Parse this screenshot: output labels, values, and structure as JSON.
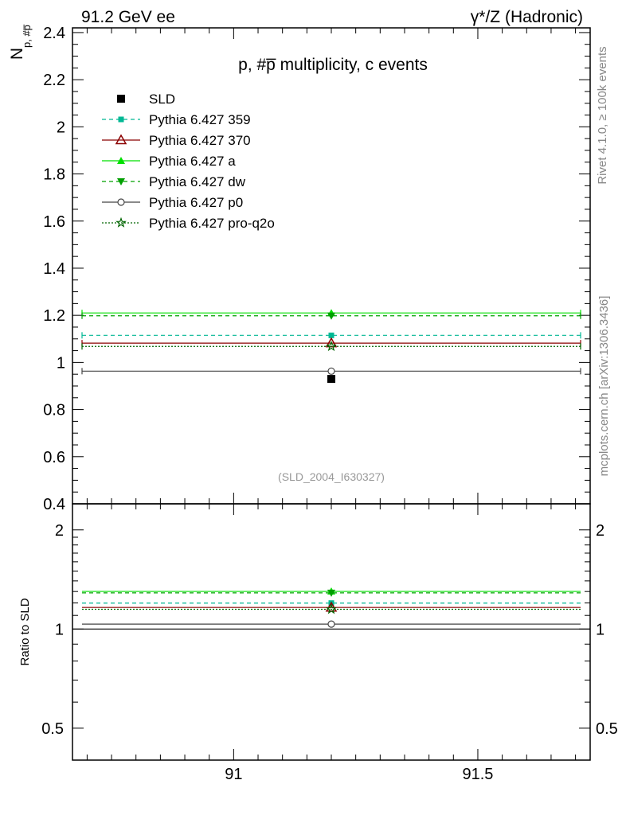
{
  "header": {
    "left": "91.2 GeV ee",
    "right": "γ*/Z (Hadronic)"
  },
  "side_labels": {
    "rivet": "Rivet 4.1.0, ≥ 100k events",
    "mcplots": "mcplots.cern.ch [arXiv:1306.3436]"
  },
  "chart_data": [
    {
      "type": "scatter",
      "title": "p, #p̅ multiplicity, c events",
      "ylabel": "N",
      "ylabel_sub": "p, #p̅",
      "watermark": "(SLD_2004_I630327)",
      "xlim": [
        90.67,
        91.73
      ],
      "ylim": [
        0.4,
        2.42
      ],
      "yticks": [
        0.4,
        0.6,
        0.8,
        1,
        1.2,
        1.4,
        1.6,
        1.8,
        2,
        2.2,
        2.4
      ],
      "ytick_labels": [
        "0.4",
        "0.6",
        "0.8",
        "1",
        "1.2",
        "1.4",
        "1.6",
        "1.8",
        "2",
        "2.2",
        "2.4"
      ],
      "legend_position": "top-left",
      "series": [
        {
          "name": "SLD",
          "x": 91.2,
          "y": 0.93,
          "color": "#000000",
          "marker": "square",
          "style": "data"
        },
        {
          "name": "Pythia 6.427 359",
          "x": 91.2,
          "y": 1.115,
          "color": "#00b894",
          "marker": "square-small",
          "style": "dashed"
        },
        {
          "name": "Pythia 6.427 370",
          "x": 91.2,
          "y": 1.082,
          "color": "#8b0000",
          "marker": "triangle-open",
          "style": "solid"
        },
        {
          "name": "Pythia 6.427 a",
          "x": 91.2,
          "y": 1.21,
          "color": "#00e000",
          "marker": "triangle",
          "style": "solid"
        },
        {
          "name": "Pythia 6.427 dw",
          "x": 91.2,
          "y": 1.198,
          "color": "#00a000",
          "marker": "triangle-down",
          "style": "dashed"
        },
        {
          "name": "Pythia 6.427 p0",
          "x": 91.2,
          "y": 0.963,
          "color": "#444444",
          "marker": "circle-open",
          "style": "solid"
        },
        {
          "name": "Pythia 6.427 pro-q2o",
          "x": 91.2,
          "y": 1.068,
          "color": "#006400",
          "marker": "star",
          "style": "dotted"
        }
      ]
    },
    {
      "type": "scatter",
      "ylabel": "Ratio to SLD",
      "xlim": [
        90.67,
        91.73
      ],
      "ylim": [
        0.4,
        2.4
      ],
      "yscale": "log",
      "yticks": [
        0.5,
        1,
        2
      ],
      "ytick_labels": [
        "0.5",
        "1",
        "2"
      ],
      "xticks": [
        91,
        91.5
      ],
      "xtick_labels": [
        "91",
        "91.5"
      ],
      "series": [
        {
          "name": "Pythia 6.427 359",
          "x": 91.2,
          "y": 1.199
        },
        {
          "name": "Pythia 6.427 370",
          "x": 91.2,
          "y": 1.163
        },
        {
          "name": "Pythia 6.427 a",
          "x": 91.2,
          "y": 1.301
        },
        {
          "name": "Pythia 6.427 dw",
          "x": 91.2,
          "y": 1.288
        },
        {
          "name": "Pythia 6.427 p0",
          "x": 91.2,
          "y": 1.035
        },
        {
          "name": "Pythia 6.427 pro-q2o",
          "x": 91.2,
          "y": 1.148
        }
      ]
    }
  ]
}
